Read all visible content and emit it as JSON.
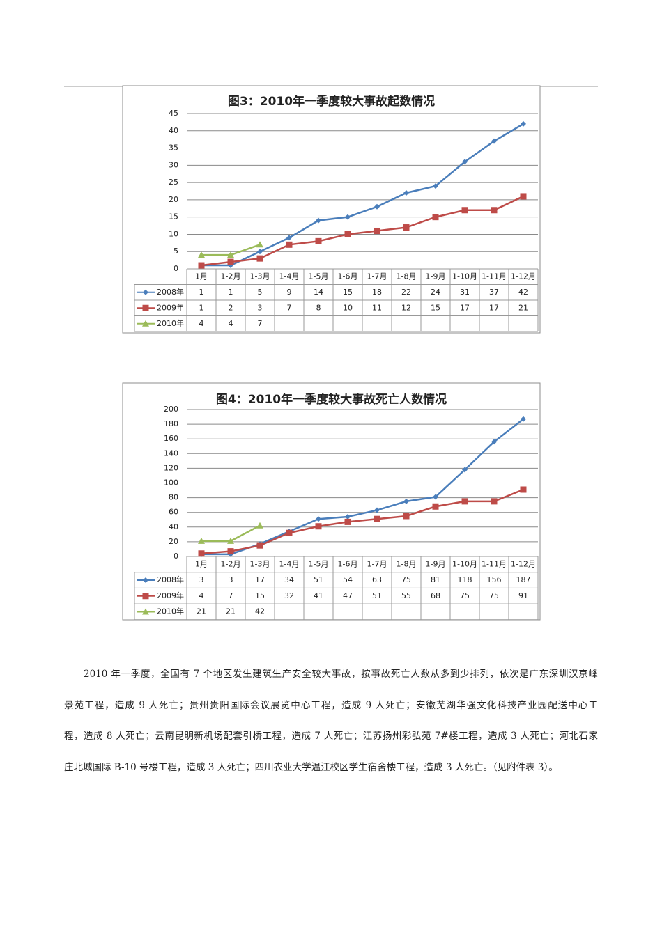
{
  "chart_data": [
    {
      "type": "line",
      "title": "图3：2010年一季度较大事故起数情况",
      "categories": [
        "1月",
        "1-2月",
        "1-3月",
        "1-4月",
        "1-5月",
        "1-6月",
        "1-7月",
        "1-8月",
        "1-9月",
        "1-10月",
        "1-11月",
        "1-12月"
      ],
      "series": [
        {
          "name": "2008年",
          "color": "#4a7ebb",
          "marker": "diamond",
          "values": [
            1,
            1,
            5,
            9,
            14,
            15,
            18,
            22,
            24,
            31,
            37,
            42
          ]
        },
        {
          "name": "2009年",
          "color": "#be4b48",
          "marker": "square",
          "values": [
            1,
            2,
            3,
            7,
            8,
            10,
            11,
            12,
            15,
            17,
            17,
            21
          ]
        },
        {
          "name": "2010年",
          "color": "#9bbb59",
          "marker": "triangle",
          "values": [
            4,
            4,
            7,
            null,
            null,
            null,
            null,
            null,
            null,
            null,
            null,
            null
          ]
        }
      ],
      "ylim": [
        0,
        45
      ],
      "yticks": [
        0,
        5,
        10,
        15,
        20,
        25,
        30,
        35,
        40,
        45
      ],
      "grid": true
    },
    {
      "type": "line",
      "title": "图4：2010年一季度较大事故死亡人数情况",
      "categories": [
        "1月",
        "1-2月",
        "1-3月",
        "1-4月",
        "1-5月",
        "1-6月",
        "1-7月",
        "1-8月",
        "1-9月",
        "1-10月",
        "1-11月",
        "1-12月"
      ],
      "series": [
        {
          "name": "2008年",
          "color": "#4a7ebb",
          "marker": "diamond",
          "values": [
            3,
            3,
            17,
            34,
            51,
            54,
            63,
            75,
            81,
            118,
            156,
            187
          ]
        },
        {
          "name": "2009年",
          "color": "#be4b48",
          "marker": "square",
          "values": [
            4,
            7,
            15,
            32,
            41,
            47,
            51,
            55,
            68,
            75,
            75,
            91
          ]
        },
        {
          "name": "2010年",
          "color": "#9bbb59",
          "marker": "triangle",
          "values": [
            21,
            21,
            42,
            null,
            null,
            null,
            null,
            null,
            null,
            null,
            null,
            null
          ]
        }
      ],
      "ylim": [
        0,
        200
      ],
      "yticks": [
        0,
        20,
        40,
        60,
        80,
        100,
        120,
        140,
        160,
        180,
        200
      ],
      "grid": true
    }
  ],
  "paragraph": {
    "lines": [
      "2010 年一季度，全国有 7 个地区发生建筑生产安全较大事故，按事故死亡人数从多到少排列，依次是广东深圳汉京峰",
      "景苑工程，造成 9 人死亡；贵州贵阳国际会议展览中心工程，造成 9 人死亡；安徽芜湖华强文化科技产业园配送中心工",
      "程，造成 8 人死亡；云南昆明新机场配套引桥工程，造成 7 人死亡；江苏扬州彩弘苑 7#楼工程，造成 3 人死亡；河北石家",
      "庄北城国际 B-10 号楼工程，造成 3 人死亡；四川农业大学温江校区学生宿舍楼工程，造成 3 人死亡。（见附件表 3）。"
    ]
  }
}
